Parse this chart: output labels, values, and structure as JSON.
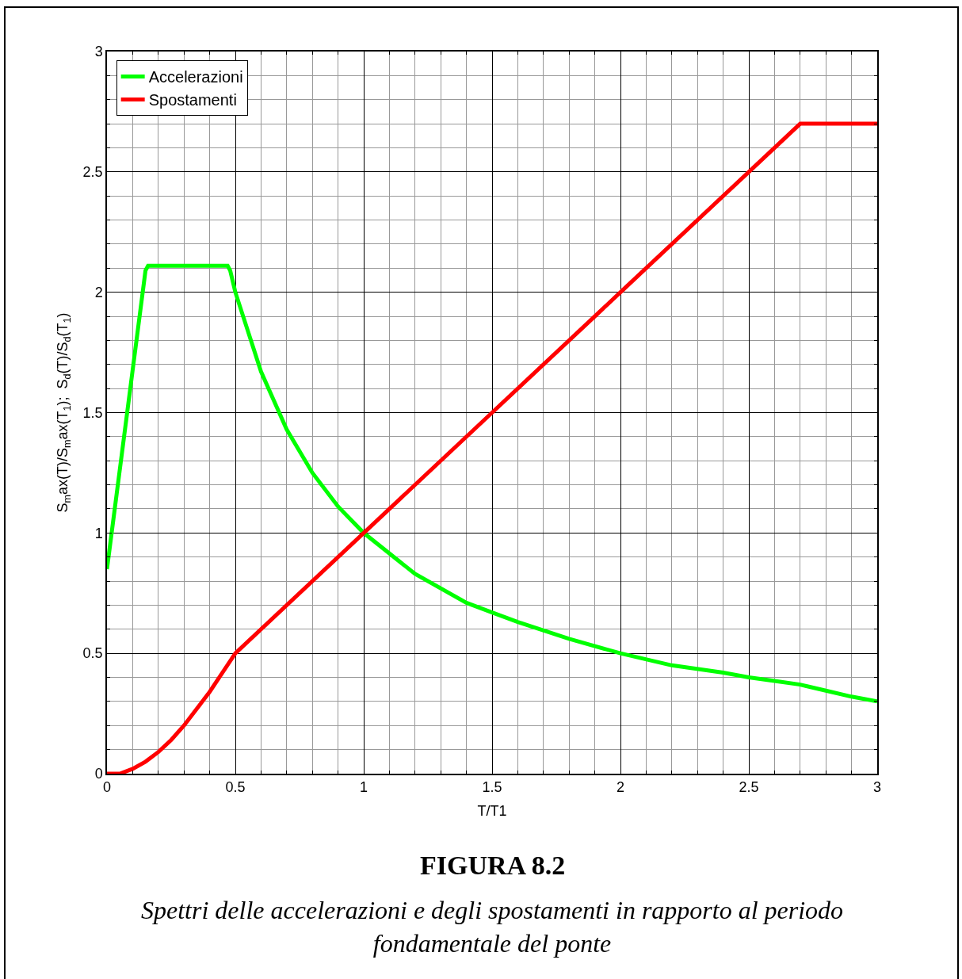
{
  "chart_data": {
    "type": "line",
    "xlabel": "T/T1",
    "ylabel": "S$_{m}$ax(T)/S$_{m}$ax(T$_{1}$);  S$_{d}$(T)/S$_{d}$(T$_{1}$)",
    "annotations": [
      "FIGURA 8.2",
      "Spettri delle accelerazioni e degli spostamenti in rapporto al periodo\nfondamentale del ponte"
    ],
    "xlim": [
      0,
      3
    ],
    "ylim": [
      0,
      3
    ],
    "xticks": [
      0,
      0.5,
      1,
      1.5,
      2,
      2.5,
      3
    ],
    "yticks": [
      0,
      0.5,
      1,
      1.5,
      2,
      2.5,
      3
    ],
    "grid": true,
    "legend": "top left",
    "line_style": "solid",
    "marker": "none",
    "series": [
      {
        "name": "Accelerazioni",
        "color": "#00ff00",
        "x": [
          0,
          0.15,
          0.16,
          0.47,
          0.48,
          0.5,
          0.6,
          0.7,
          0.8,
          0.9,
          1,
          1.2,
          1.4,
          1.5,
          1.6,
          1.8,
          2,
          2.2,
          2.4,
          2.5,
          2.6,
          2.7,
          2.8,
          2.9,
          3
        ],
        "values": [
          0.85,
          2.09,
          2.11,
          2.11,
          2.09,
          2.0,
          1.67,
          1.43,
          1.25,
          1.11,
          1.0,
          0.83,
          0.71,
          0.67,
          0.63,
          0.56,
          0.5,
          0.45,
          0.42,
          0.4,
          0.385,
          0.37,
          0.345,
          0.32,
          0.3
        ]
      },
      {
        "name": "Spostamenti",
        "color": "#ff0000",
        "x": [
          0,
          0.05,
          0.1,
          0.15,
          0.2,
          0.25,
          0.3,
          0.35,
          0.4,
          0.45,
          0.5,
          1,
          1.5,
          2,
          2.5,
          2.7,
          3
        ],
        "values": [
          0,
          0,
          0.02,
          0.05,
          0.09,
          0.14,
          0.2,
          0.27,
          0.34,
          0.42,
          0.5,
          1,
          1.5,
          2,
          2.5,
          2.7,
          2.7
        ]
      }
    ]
  }
}
